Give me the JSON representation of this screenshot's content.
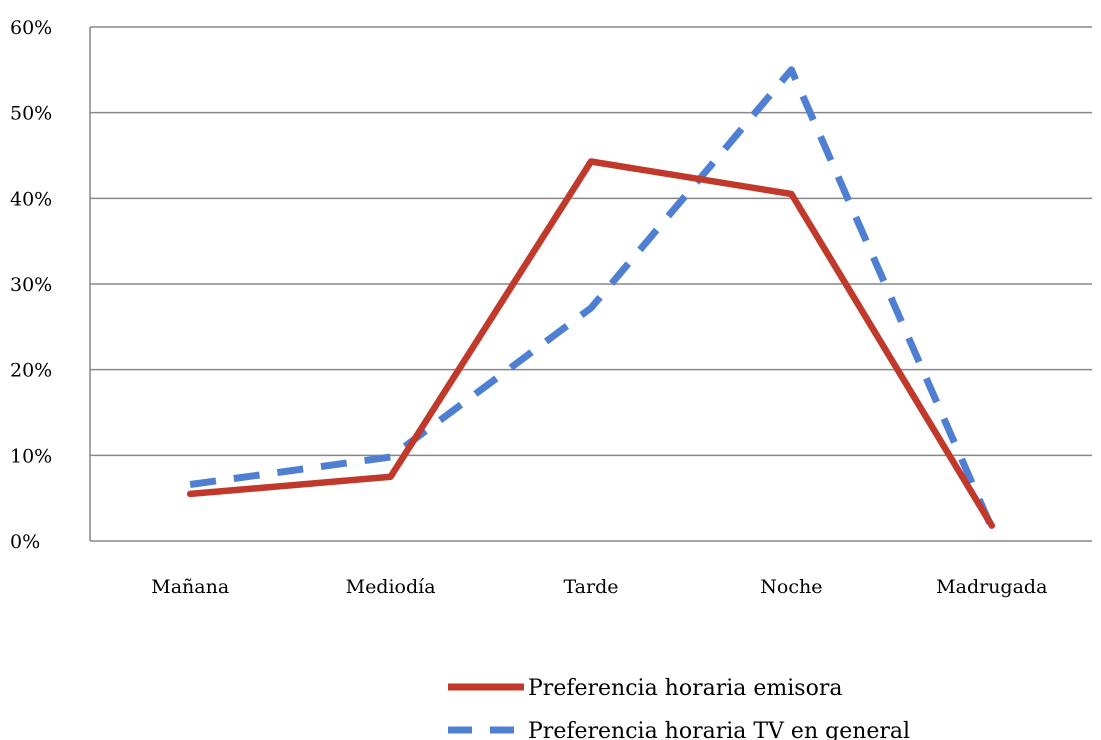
{
  "chart_data": {
    "type": "line",
    "categories": [
      "Mañana",
      "Mediodía",
      "Tarde",
      "Noche",
      "Madrugada"
    ],
    "series": [
      {
        "name": "Preferencia horaria emisora",
        "values": [
          5.5,
          7.5,
          44.3,
          40.5,
          1.8
        ],
        "color": "#c0392b",
        "style": "solid"
      },
      {
        "name": "Preferencia horaria TV en general",
        "values": [
          6.6,
          9.8,
          27.2,
          55.0,
          1.5
        ],
        "color": "#4f7fd3",
        "style": "dashed"
      }
    ],
    "y_ticks": [
      "0%",
      "10%",
      "20%",
      "30%",
      "40%",
      "50%",
      "60%"
    ],
    "ylim": [
      0,
      60
    ],
    "y_unit": "%",
    "grid": true,
    "legend_position": "bottom-center"
  }
}
